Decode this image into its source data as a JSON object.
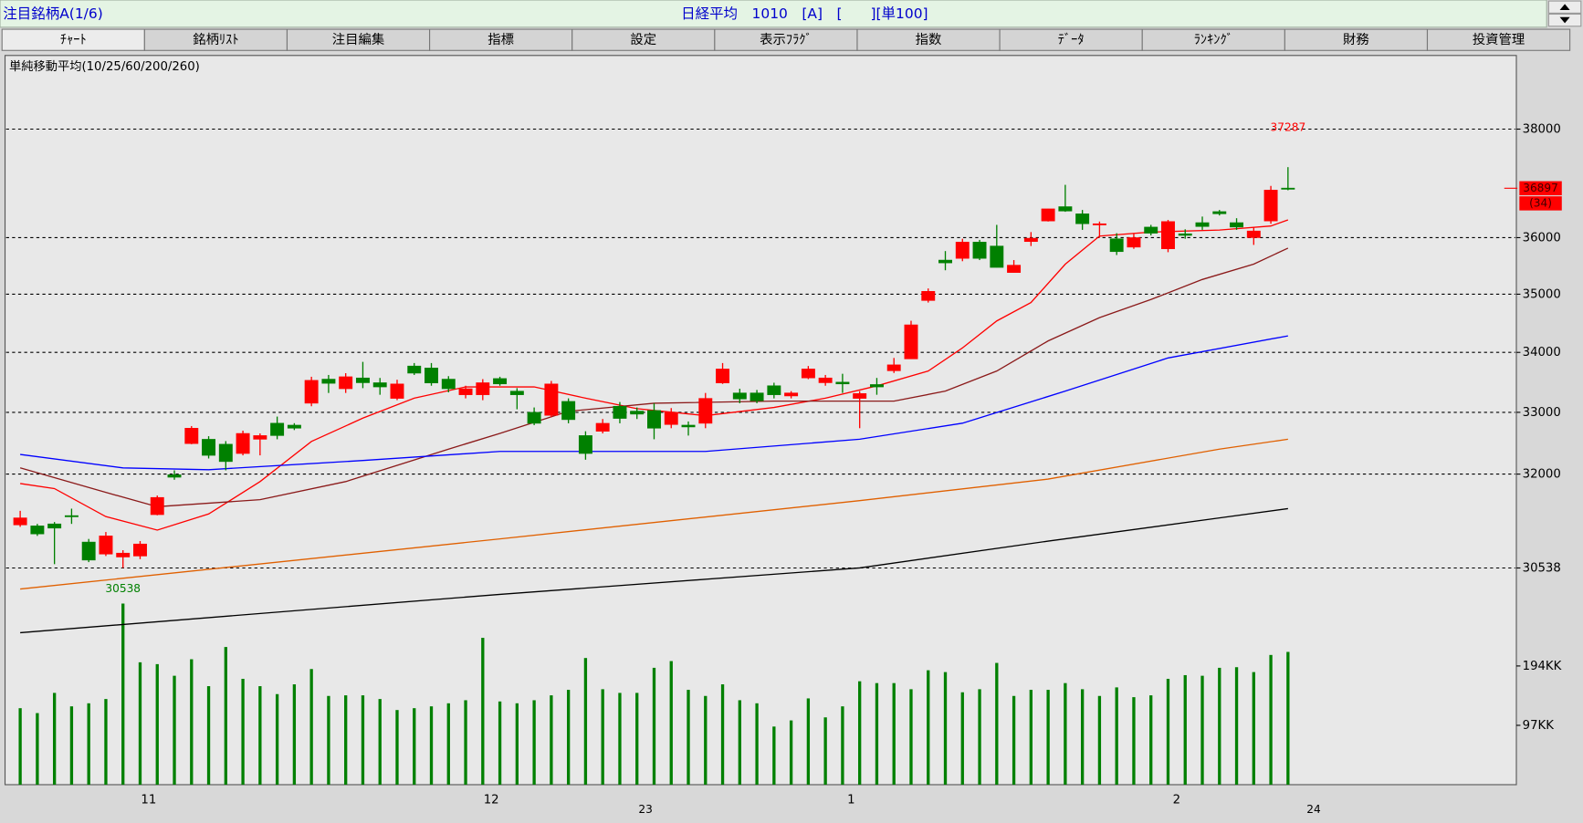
{
  "header": {
    "title": "注目銘柄A(1/6)",
    "info": "日経平均　1010　[A]　[　　][単100]"
  },
  "tabs": [
    "ﾁｬｰﾄ",
    "銘柄ﾘｽﾄ",
    "注目編集",
    "指標",
    "設定",
    "表示ﾌﾗｸﾞ",
    "指数",
    "ﾃﾞｰﾀ",
    "ﾗﾝｷﾝｸﾞ",
    "財務",
    "投資管理"
  ],
  "chart_data": {
    "type": "candlestick",
    "subtitle": "単純移動平均(10/25/60/200/260)",
    "categories": [
      null,
      null,
      null,
      null,
      null,
      null,
      null,
      null,
      "11",
      null,
      null,
      null,
      null,
      null,
      null,
      null,
      null,
      null,
      null,
      null,
      null,
      null,
      null,
      null,
      null,
      null,
      null,
      null,
      "12",
      null,
      null,
      null,
      null,
      null,
      null,
      null,
      null,
      null,
      null,
      null,
      null,
      null,
      null,
      null,
      null,
      null,
      null,
      null,
      null,
      "1",
      null,
      null,
      null,
      null,
      null,
      null,
      null,
      null,
      null,
      null,
      null,
      null,
      null,
      null,
      null,
      null,
      null,
      null,
      "2",
      null,
      null,
      null,
      null,
      null,
      null,
      null,
      null
    ],
    "year_labels": [
      null,
      null,
      null,
      null,
      null,
      null,
      null,
      null,
      null,
      null,
      null,
      null,
      null,
      null,
      null,
      null,
      null,
      null,
      null,
      null,
      null,
      null,
      null,
      null,
      null,
      null,
      null,
      null,
      null,
      null,
      null,
      null,
      null,
      null,
      null,
      null,
      null,
      "23",
      null,
      null,
      null,
      null,
      null,
      null,
      null,
      null,
      null,
      null,
      null,
      null,
      null,
      null,
      null,
      null,
      null,
      null,
      null,
      null,
      null,
      null,
      null,
      null,
      null,
      null,
      null,
      null,
      null,
      null,
      null,
      null,
      null,
      null,
      null,
      null,
      null,
      null,
      "24"
    ],
    "open": [
      31200,
      31185,
      31216,
      31345,
      30935,
      30750,
      30705,
      30720,
      31360,
      31990,
      32490,
      32560,
      32480,
      32330,
      32560,
      32822,
      32790,
      33150,
      33550,
      33390,
      33570,
      33490,
      33230,
      33770,
      33737,
      33550,
      33290,
      33290,
      33560,
      33350,
      33000,
      32950,
      33180,
      32620,
      32690,
      33100,
      33020,
      33030,
      32800,
      32790,
      32820,
      33486,
      33320,
      33320,
      33440,
      33270,
      33570,
      33490,
      33500,
      33230,
      33460,
      33690,
      33890,
      34890,
      35600,
      35630,
      35920,
      35850,
      35380,
      35930,
      36300,
      36560,
      36430,
      36230,
      35980,
      35830,
      36190,
      35800,
      36070,
      36270,
      36470,
      36270,
      36000,
      36300,
      36900,
      null,
      null
    ],
    "high": [
      31420,
      31216,
      31245,
      31454,
      30983,
      31090,
      30810,
      30950,
      31660,
      32060,
      32775,
      32610,
      32530,
      32700,
      32655,
      32930,
      32822,
      33590,
      33620,
      33650,
      33840,
      33570,
      33540,
      33820,
      33820,
      33600,
      33440,
      33550,
      33590,
      33400,
      33080,
      33520,
      33230,
      32690,
      32890,
      33170,
      33080,
      33150,
      33070,
      32850,
      33320,
      33820,
      33390,
      33370,
      33490,
      33350,
      33770,
      33620,
      33640,
      33350,
      33570,
      33906,
      34540,
      35100,
      35760,
      35980,
      35960,
      36230,
      35600,
      36100,
      36520,
      36960,
      36500,
      36290,
      36080,
      36080,
      36230,
      36320,
      36150,
      36380,
      36500,
      36350,
      36190,
      36940,
      37287,
      null,
      null
    ],
    "low": [
      31170,
      31030,
      30596,
      31216,
      30627,
      30720,
      30538,
      30673,
      31350,
      31910,
      32480,
      32250,
      32060,
      32300,
      32300,
      32560,
      32710,
      33100,
      33320,
      33320,
      33400,
      33290,
      33200,
      33620,
      33440,
      33330,
      33230,
      33200,
      33440,
      33050,
      32790,
      32920,
      32820,
      32230,
      32655,
      32820,
      32890,
      32560,
      32740,
      32620,
      32740,
      33470,
      33150,
      33150,
      33230,
      33230,
      33550,
      33440,
      33320,
      32740,
      33290,
      33653,
      33890,
      34855,
      35420,
      35580,
      35600,
      35470,
      35380,
      35850,
      36290,
      36467,
      36140,
      36000,
      35690,
      35800,
      36040,
      35740,
      35980,
      36140,
      36400,
      36140,
      35870,
      36250,
      36860,
      null,
      null
    ],
    "close": [
      31310,
      31060,
      31150,
      31330,
      30658,
      31030,
      30765,
      30905,
      31630,
      31950,
      32740,
      32300,
      32200,
      32655,
      32620,
      32620,
      32740,
      33530,
      33480,
      33590,
      33490,
      33420,
      33470,
      33650,
      33486,
      33390,
      33390,
      33490,
      33470,
      33290,
      32820,
      33470,
      32880,
      32330,
      32820,
      32900,
      32970,
      32740,
      33000,
      32760,
      33230,
      33720,
      33220,
      33190,
      33290,
      33320,
      33720,
      33570,
      33470,
      33310,
      33420,
      33790,
      34470,
      35050,
      35550,
      35920,
      35630,
      35470,
      35510,
      35990,
      36520,
      36480,
      36250,
      36250,
      35750,
      36000,
      36080,
      36290,
      36040,
      36200,
      36430,
      36190,
      36120,
      36863,
      36897,
      null,
      null
    ],
    "up_color": "#ff0000",
    "down_color": "#008000",
    "log": true,
    "ylim": [
      29000,
      39400
    ],
    "yticks": [
      30538,
      32000,
      33000,
      34000,
      35000,
      36000,
      38000
    ],
    "grid": true,
    "moving_averages": [
      {
        "color": "#ff0000",
        "x": [
          0,
          2,
          5,
          8,
          11,
          14,
          17,
          20,
          23,
          26,
          30,
          33,
          36,
          40,
          44,
          47,
          50,
          53,
          55,
          57,
          59,
          61,
          63,
          66,
          70,
          73,
          74
        ],
        "values": [
          31850,
          31770,
          31330,
          31120,
          31370,
          31880,
          32525,
          32904,
          33234,
          33420,
          33420,
          33234,
          33060,
          32946,
          33080,
          33234,
          33437,
          33686,
          34075,
          34537,
          34855,
          35528,
          36028,
          36100,
          36137,
          36210,
          36320
        ]
      },
      {
        "color": "#8b1a1a",
        "x": [
          0,
          5,
          8,
          14,
          19,
          25,
          28,
          32,
          37,
          44,
          51,
          54,
          57,
          60,
          63,
          66,
          69,
          72,
          74
        ],
        "values": [
          32100,
          31710,
          31485,
          31595,
          31880,
          32400,
          32655,
          33017,
          33150,
          33185,
          33185,
          33350,
          33686,
          34195,
          34595,
          34907,
          35257,
          35528,
          35812
        ]
      },
      {
        "color": "#0000ff",
        "x": [
          0,
          6,
          11,
          20,
          28,
          40,
          49,
          55,
          61,
          67,
          74
        ],
        "values": [
          32315,
          32100,
          32070,
          32218,
          32363,
          32363,
          32560,
          32822,
          33350,
          33906,
          34282
        ]
      },
      {
        "color": "#e06000",
        "x": [
          0,
          28,
          49,
          60,
          70,
          74
        ],
        "values": [
          30220,
          30983,
          31580,
          31920,
          32400,
          32560
        ]
      },
      {
        "color": "#000000",
        "x": [
          0,
          28,
          49,
          60,
          70,
          74
        ],
        "values": [
          29570,
          30140,
          30538,
          30950,
          31310,
          31454
        ]
      }
    ],
    "volume": {
      "color": "#008000",
      "ylim": [
        0,
        300
      ],
      "yticks": [
        {
          "value": 97,
          "label": "97KK"
        },
        {
          "value": 194,
          "label": "194KK"
        }
      ],
      "values": [
        125,
        117,
        150,
        128,
        133,
        140,
        296,
        200,
        197,
        178,
        205,
        161,
        225,
        173,
        161,
        148,
        164,
        189,
        145,
        146,
        146,
        140,
        122,
        125,
        128,
        133,
        138,
        240,
        136,
        133,
        138,
        146,
        155,
        207,
        156,
        150,
        150,
        191,
        202,
        155,
        145,
        164,
        138,
        133,
        95,
        105,
        141,
        110,
        128,
        169,
        166,
        166,
        156,
        187,
        184,
        151,
        156,
        199,
        145,
        155,
        155,
        166,
        156,
        145,
        159,
        143,
        146,
        173,
        179,
        178,
        191,
        192,
        184,
        212,
        217,
        null,
        null
      ]
    },
    "annotations": [
      {
        "value": 37287,
        "x": 74,
        "color": "#ff0000",
        "side": "above"
      },
      {
        "value": 30538,
        "x": 6,
        "color": "#008000",
        "side": "below"
      }
    ],
    "last_price": {
      "value": 36897,
      "color": "#ff0000"
    },
    "last_change": {
      "value": 34,
      "label": "(34)"
    }
  }
}
